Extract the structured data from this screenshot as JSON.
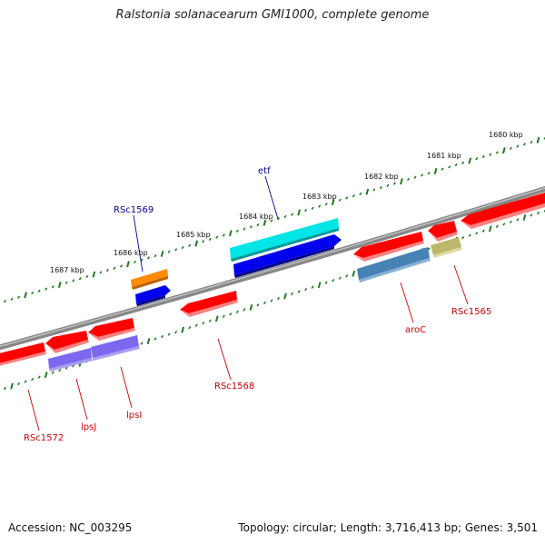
{
  "title": "Ralstonia solanacearum GMI1000, complete genome",
  "footer": {
    "accession": "Accession: NC_003295",
    "summary": "Topology: circular; Length: 3,716,413 bp; Genes: 3,501"
  },
  "scale_labels": [
    "1680 kbp",
    "1681 kbp",
    "1682 kbp",
    "1683 kbp",
    "1684 kbp",
    "1685 kbp",
    "1686 kbp",
    "1687 kbp"
  ],
  "gene_labels": [
    {
      "text": "etf",
      "color": "#00008b"
    },
    {
      "text": "RSc1569",
      "color": "#00008b"
    },
    {
      "text": "aroC",
      "color": "#cc0000"
    },
    {
      "text": "RSc1565",
      "color": "#cc0000"
    },
    {
      "text": "RSc1568",
      "color": "#cc0000"
    },
    {
      "text": "lpsI",
      "color": "#cc0000"
    },
    {
      "text": "lpsJ",
      "color": "#cc0000"
    },
    {
      "text": "RSc1572",
      "color": "#cc0000"
    }
  ],
  "colors": {
    "backbone": "#808080",
    "tick": "#1f7a1f",
    "cds": "#ff0000",
    "cyan_feature": "#00e5e5",
    "blue_feature": "#0000ee",
    "orange_feature": "#ff8c00",
    "purple_feature": "#7b68ee",
    "steel_feature": "#4682b4",
    "khaki_feature": "#bdb76b"
  }
}
